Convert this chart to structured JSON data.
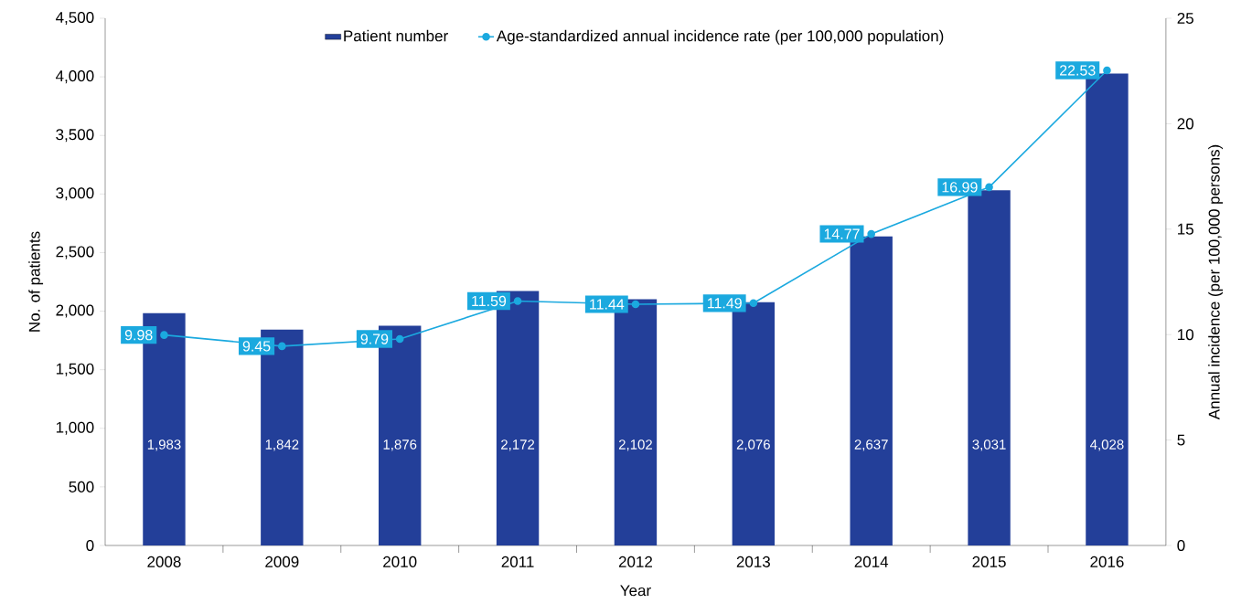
{
  "chart_data": {
    "type": "bar",
    "xlabel": "Year",
    "ylabel": "No. of patients",
    "y2label": "Annual incidence (per 100,000 persons)",
    "categories": [
      "2008",
      "2009",
      "2010",
      "2011",
      "2012",
      "2013",
      "2014",
      "2015",
      "2016"
    ],
    "series": [
      {
        "name": "Patient number",
        "color": "#233f99",
        "values": [
          1983,
          1842,
          1876,
          2172,
          2102,
          2076,
          2637,
          3031,
          4028
        ],
        "value_labels": [
          "1,983",
          "1,842",
          "1,876",
          "2,172",
          "2,102",
          "2,076",
          "2,637",
          "3,031",
          "4,028"
        ]
      },
      {
        "name": "Age-standardized annual incidence rate (per 100,000 population)",
        "type": "line",
        "axis": "y2",
        "color": "#1ba9df",
        "values": [
          9.98,
          9.45,
          9.79,
          11.59,
          11.44,
          11.49,
          14.77,
          16.99,
          22.53
        ],
        "value_labels": [
          "9.98",
          "9.45",
          "9.79",
          "11.59",
          "11.44",
          "11.49",
          "14.77",
          "16.99",
          "22.53"
        ]
      }
    ],
    "ylim": [
      0,
      4500
    ],
    "yticks": [
      {
        "value": 0,
        "label": "0"
      },
      {
        "value": 500,
        "label": "500"
      },
      {
        "value": 1000,
        "label": "1,000"
      },
      {
        "value": 1500,
        "label": "1,500"
      },
      {
        "value": 2000,
        "label": "2,000"
      },
      {
        "value": 2500,
        "label": "2,500"
      },
      {
        "value": 3000,
        "label": "3,000"
      },
      {
        "value": 3500,
        "label": "3,500"
      },
      {
        "value": 4000,
        "label": "4,000"
      },
      {
        "value": 4500,
        "label": "4,500"
      }
    ],
    "y2lim": [
      0,
      25
    ],
    "y2ticks": [
      0,
      5,
      10,
      15,
      20,
      25
    ],
    "legend": "top",
    "marker": "circle",
    "line_style": "solid"
  }
}
